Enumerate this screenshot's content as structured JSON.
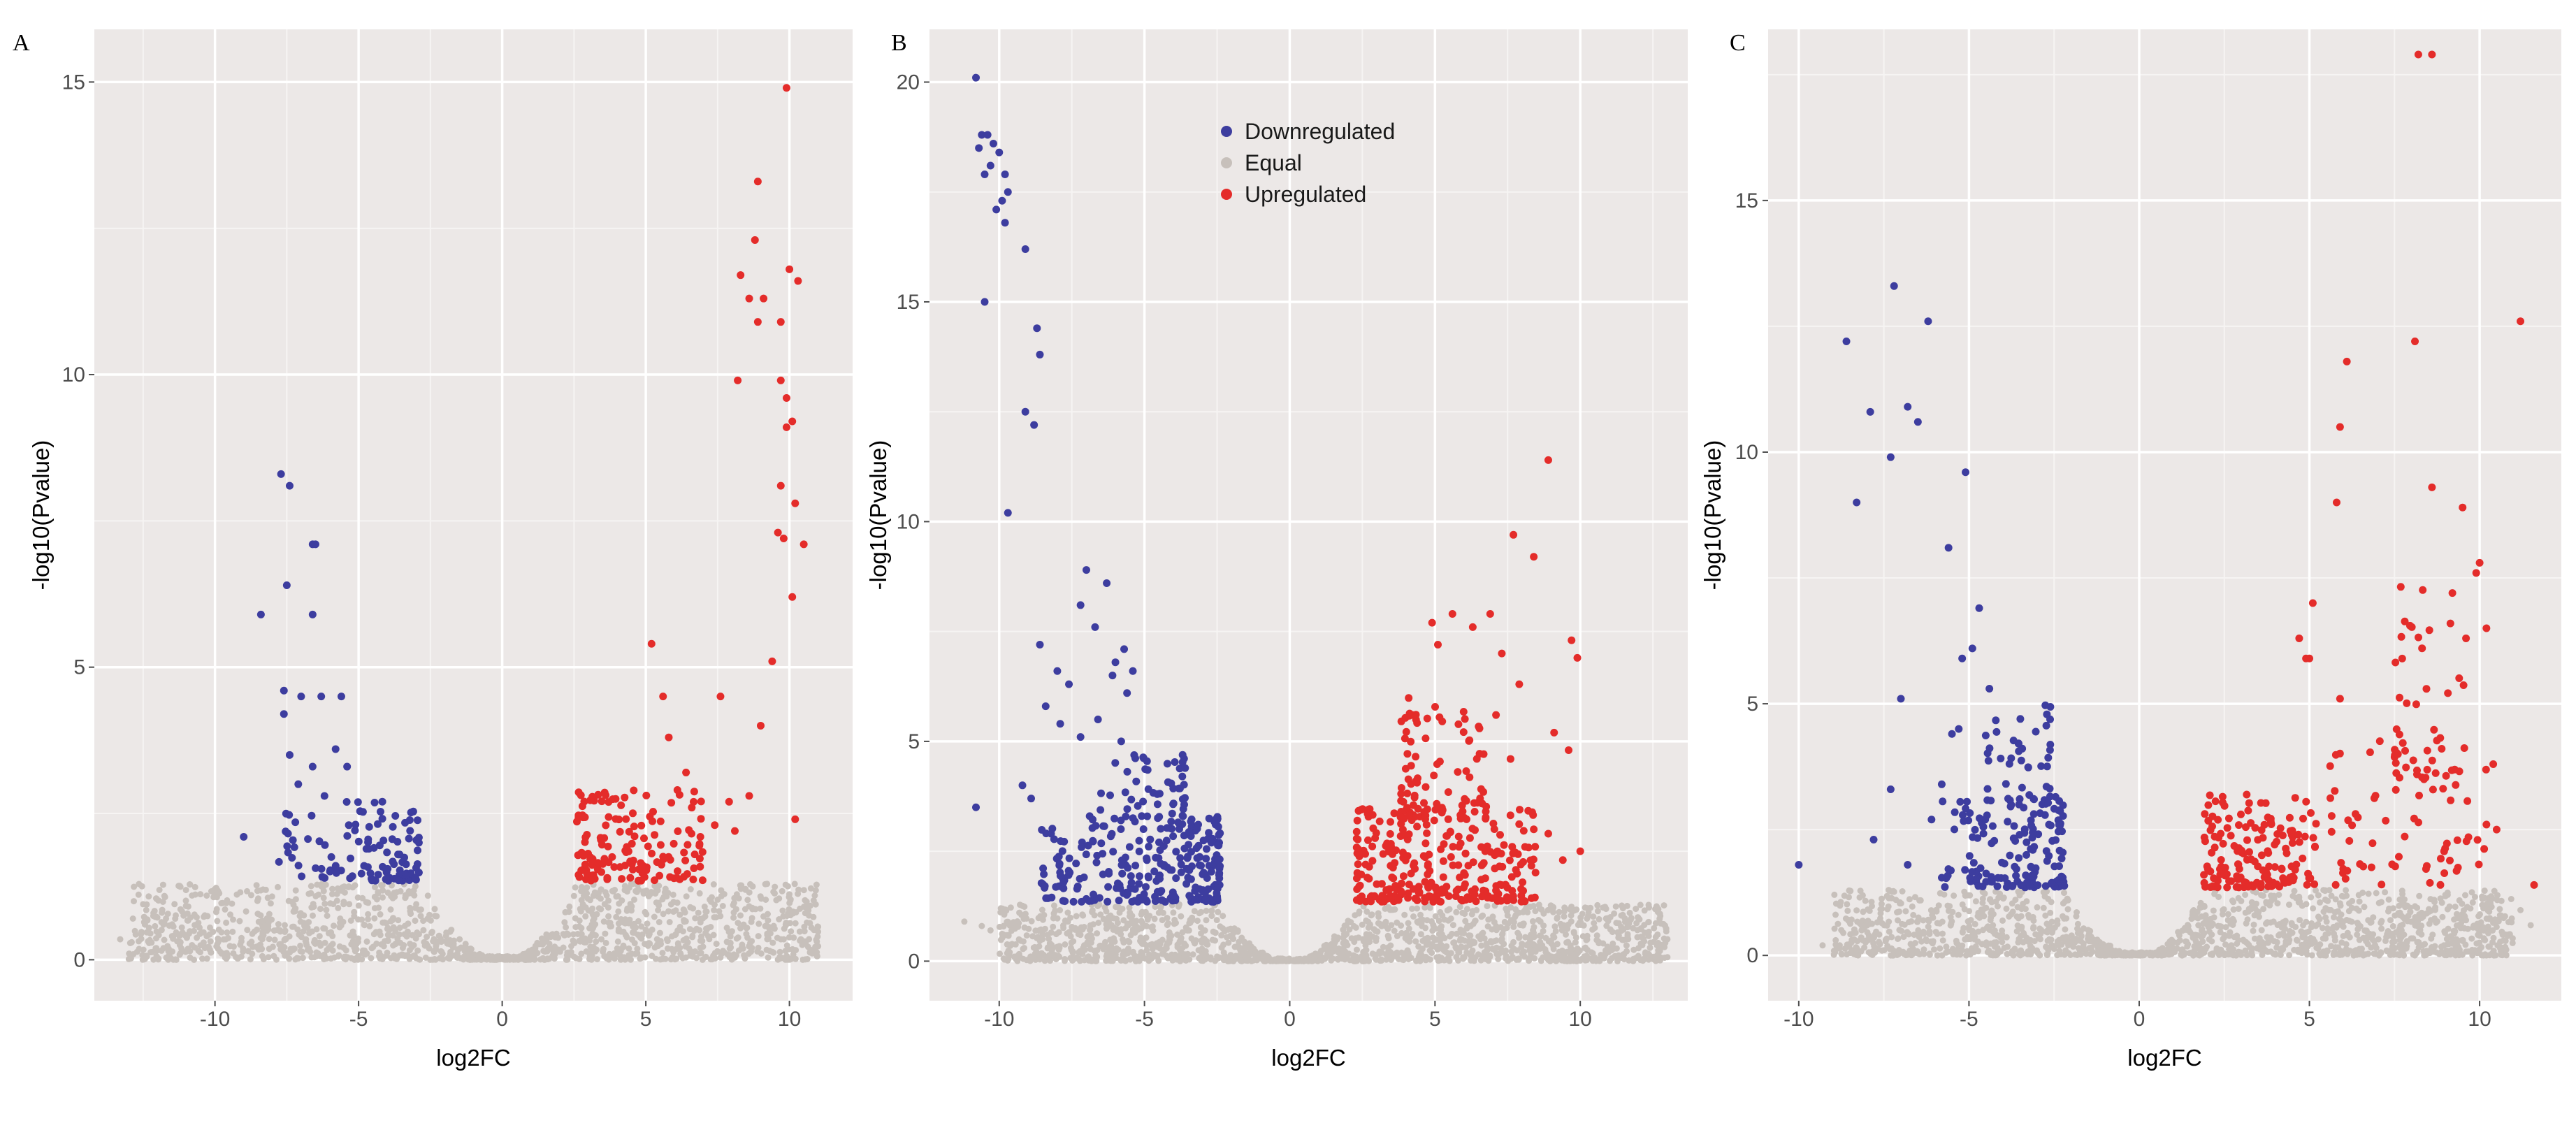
{
  "chart_data": [
    {
      "panel": "A",
      "type": "scatter",
      "title": "",
      "xlabel": "log2FC",
      "ylabel": "-log10(Pvalue)",
      "xlim": [
        -14.2,
        12.2
      ],
      "ylim": [
        -0.7,
        15.9
      ],
      "xticks": [
        -10,
        -5,
        0,
        5,
        10
      ],
      "yticks": [
        0,
        5,
        10,
        15
      ],
      "xtick_labels": [
        "-10",
        "-5",
        "0",
        "5",
        "10"
      ],
      "ytick_labels": [
        "0",
        "5",
        "10",
        "15"
      ],
      "grid": true,
      "colors": {
        "down": "#3d3d9f",
        "equal": "#c7c0bb",
        "up": "#e42c2a"
      },
      "noise": {
        "threshold": 1.3,
        "down_boundary": -2.8,
        "up_boundary": 2.6,
        "xmin": -13,
        "xmax": 11,
        "seed": 11
      },
      "clusters": [
        {
          "side": "down",
          "xmin": -7.8,
          "xmax": -2.9,
          "ymin": 1.35,
          "ymax": 2.8,
          "n": 110,
          "seed": 21
        },
        {
          "side": "up",
          "xmin": 2.6,
          "xmax": 7.0,
          "ymin": 1.35,
          "ymax": 2.9,
          "n": 150,
          "seed": 31
        }
      ],
      "series": [
        {
          "name": "Downregulated",
          "points": [
            [
              -7.7,
              8.3
            ],
            [
              -7.4,
              8.1
            ],
            [
              -6.6,
              7.1
            ],
            [
              -6.5,
              7.1
            ],
            [
              -7.5,
              6.4
            ],
            [
              -8.4,
              5.9
            ],
            [
              -6.6,
              5.9
            ],
            [
              -7.6,
              4.6
            ],
            [
              -7.6,
              4.2
            ],
            [
              -7.0,
              4.5
            ],
            [
              -6.3,
              4.5
            ],
            [
              -5.6,
              4.5
            ],
            [
              -9.0,
              2.1
            ],
            [
              -7.4,
              3.5
            ],
            [
              -6.6,
              3.3
            ],
            [
              -7.1,
              3.0
            ],
            [
              -5.8,
              3.6
            ],
            [
              -5.4,
              3.3
            ]
          ]
        },
        {
          "name": "Equal",
          "points": [
            [
              -13.3,
              0.35
            ],
            [
              -12.9,
              0.3
            ],
            [
              -11.2,
              0.3
            ],
            [
              -10.8,
              0.25
            ],
            [
              9.8,
              0.35
            ],
            [
              10.4,
              0.35
            ],
            [
              10.9,
              0.22
            ]
          ]
        },
        {
          "name": "Upregulated",
          "points": [
            [
              9.9,
              14.9
            ],
            [
              8.9,
              13.3
            ],
            [
              8.8,
              12.3
            ],
            [
              8.3,
              11.7
            ],
            [
              8.6,
              11.3
            ],
            [
              9.1,
              11.3
            ],
            [
              10.0,
              11.8
            ],
            [
              10.3,
              11.6
            ],
            [
              8.9,
              10.9
            ],
            [
              9.7,
              10.9
            ],
            [
              8.2,
              9.9
            ],
            [
              9.7,
              9.9
            ],
            [
              9.9,
              9.6
            ],
            [
              10.1,
              9.2
            ],
            [
              9.9,
              9.1
            ],
            [
              9.7,
              8.1
            ],
            [
              10.2,
              7.8
            ],
            [
              9.6,
              7.3
            ],
            [
              9.8,
              7.2
            ],
            [
              10.5,
              7.1
            ],
            [
              10.1,
              6.2
            ],
            [
              9.4,
              5.1
            ],
            [
              5.2,
              5.4
            ],
            [
              7.6,
              4.5
            ],
            [
              9.0,
              4.0
            ],
            [
              8.6,
              2.8
            ],
            [
              10.2,
              2.4
            ],
            [
              6.9,
              2.1
            ],
            [
              7.4,
              2.3
            ],
            [
              8.1,
              2.2
            ],
            [
              7.9,
              2.7
            ],
            [
              6.4,
              3.2
            ],
            [
              6.1,
              2.9
            ],
            [
              5.8,
              3.8
            ],
            [
              6.6,
              2.6
            ],
            [
              5.6,
              4.5
            ]
          ]
        }
      ]
    },
    {
      "panel": "B",
      "type": "scatter",
      "title": "",
      "xlabel": "log2FC",
      "ylabel": "-log10(Pvalue)",
      "xlim": [
        -12.4,
        13.7
      ],
      "ylim": [
        -0.9,
        21.2
      ],
      "xticks": [
        -10,
        -5,
        0,
        5,
        10
      ],
      "yticks": [
        0,
        5,
        10,
        15,
        20
      ],
      "xtick_labels": [
        "-10",
        "-5",
        "0",
        "5",
        "10"
      ],
      "ytick_labels": [
        "0",
        "5",
        "10",
        "15",
        "20"
      ],
      "grid": true,
      "legend": {
        "position": "top-center",
        "entries": [
          "Downregulated",
          "Equal",
          "Upregulated"
        ]
      },
      "colors": {
        "down": "#3d3d9f",
        "equal": "#c7c0bb",
        "up": "#e42c2a"
      },
      "noise": {
        "threshold": 1.3,
        "down_boundary": -2.4,
        "up_boundary": 2.3,
        "xmin": -10,
        "xmax": 13,
        "seed": 12
      },
      "clusters": [
        {
          "side": "down",
          "xmin": -8.6,
          "xmax": -2.4,
          "ymin": 1.35,
          "ymax": 3.3,
          "n": 260,
          "seed": 22
        },
        {
          "side": "down",
          "xmin": -6.8,
          "xmax": -3.6,
          "ymin": 3.0,
          "ymax": 4.8,
          "n": 60,
          "seed": 23
        },
        {
          "side": "up",
          "xmin": 2.3,
          "xmax": 8.5,
          "ymin": 1.35,
          "ymax": 3.5,
          "n": 280,
          "seed": 32
        },
        {
          "side": "up",
          "xmin": 3.8,
          "xmax": 7.0,
          "ymin": 3.2,
          "ymax": 6.0,
          "n": 90,
          "seed": 33
        }
      ],
      "series": [
        {
          "name": "Downregulated",
          "points": [
            [
              -10.8,
              20.1
            ],
            [
              -10.6,
              18.8
            ],
            [
              -10.4,
              18.8
            ],
            [
              -10.2,
              18.6
            ],
            [
              -10.7,
              18.5
            ],
            [
              -10.0,
              18.4
            ],
            [
              -10.3,
              18.1
            ],
            [
              -9.8,
              17.9
            ],
            [
              -10.5,
              17.9
            ],
            [
              -9.7,
              17.5
            ],
            [
              -9.9,
              17.3
            ],
            [
              -10.1,
              17.1
            ],
            [
              -9.8,
              16.8
            ],
            [
              -9.1,
              16.2
            ],
            [
              -10.5,
              15.0
            ],
            [
              -8.7,
              14.4
            ],
            [
              -8.6,
              13.8
            ],
            [
              -9.1,
              12.5
            ],
            [
              -8.8,
              12.2
            ],
            [
              -9.7,
              10.2
            ],
            [
              -7.0,
              8.9
            ],
            [
              -6.3,
              8.6
            ],
            [
              -7.2,
              8.1
            ],
            [
              -6.7,
              7.6
            ],
            [
              -8.6,
              7.2
            ],
            [
              -5.7,
              7.1
            ],
            [
              -6.0,
              6.8
            ],
            [
              -8.0,
              6.6
            ],
            [
              -5.4,
              6.6
            ],
            [
              -6.1,
              6.5
            ],
            [
              -7.6,
              6.3
            ],
            [
              -5.6,
              6.1
            ],
            [
              -10.8,
              3.5
            ],
            [
              -8.4,
              5.8
            ],
            [
              -7.9,
              5.4
            ],
            [
              -7.2,
              5.1
            ],
            [
              -6.6,
              5.5
            ],
            [
              -5.8,
              5.0
            ],
            [
              -9.2,
              4.0
            ],
            [
              -8.9,
              3.7
            ]
          ]
        },
        {
          "name": "Equal",
          "points": [
            [
              -11.2,
              0.9
            ],
            [
              -10.6,
              0.8
            ],
            [
              -10.3,
              0.7
            ],
            [
              12.6,
              0.55
            ],
            [
              13.0,
              0.5
            ],
            [
              12.2,
              0.45
            ],
            [
              11.6,
              0.5
            ]
          ]
        },
        {
          "name": "Upregulated",
          "points": [
            [
              8.9,
              11.4
            ],
            [
              7.7,
              9.7
            ],
            [
              8.4,
              9.2
            ],
            [
              5.6,
              7.9
            ],
            [
              6.9,
              7.9
            ],
            [
              6.3,
              7.6
            ],
            [
              4.9,
              7.7
            ],
            [
              9.7,
              7.3
            ],
            [
              9.9,
              6.9
            ],
            [
              7.3,
              7.0
            ],
            [
              5.1,
              7.2
            ],
            [
              7.9,
              6.3
            ],
            [
              9.1,
              5.2
            ],
            [
              9.6,
              4.8
            ],
            [
              10.0,
              2.5
            ],
            [
              8.9,
              2.9
            ],
            [
              9.4,
              2.3
            ],
            [
              8.4,
              3.0
            ],
            [
              8.1,
              2.6
            ],
            [
              7.6,
              4.6
            ],
            [
              7.1,
              5.6
            ]
          ]
        }
      ]
    },
    {
      "panel": "C",
      "type": "scatter",
      "title": "",
      "xlabel": "log2FC",
      "ylabel": "-log10(Pvalue)",
      "xlim": [
        -10.9,
        12.4
      ],
      "ylim": [
        -0.9,
        18.4
      ],
      "xticks": [
        -10,
        -5,
        0,
        5,
        10
      ],
      "yticks": [
        0,
        5,
        10,
        15
      ],
      "xtick_labels": [
        "-10",
        "-5",
        "0",
        "5",
        "10"
      ],
      "ytick_labels": [
        "0",
        "5",
        "10",
        "15"
      ],
      "grid": true,
      "colors": {
        "down": "#3d3d9f",
        "equal": "#c7c0bb",
        "up": "#e42c2a"
      },
      "noise": {
        "threshold": 1.3,
        "down_boundary": -2.2,
        "up_boundary": 1.9,
        "xmin": -9,
        "xmax": 11,
        "seed": 13
      },
      "clusters": [
        {
          "side": "down",
          "xmin": -5.8,
          "xmax": -2.2,
          "ymin": 1.35,
          "ymax": 3.2,
          "n": 150,
          "seed": 24
        },
        {
          "side": "down",
          "xmin": -4.6,
          "xmax": -2.6,
          "ymin": 3.0,
          "ymax": 5.0,
          "n": 40,
          "seed": 25
        },
        {
          "side": "up",
          "xmin": 1.9,
          "xmax": 5.2,
          "ymin": 1.35,
          "ymax": 3.2,
          "n": 160,
          "seed": 34
        },
        {
          "side": "up",
          "xmin": 5.5,
          "xmax": 10.2,
          "ymin": 1.4,
          "ymax": 4.5,
          "n": 70,
          "seed": 35
        },
        {
          "side": "up",
          "xmin": 7.5,
          "xmax": 10.0,
          "ymin": 3.5,
          "ymax": 7.5,
          "n": 40,
          "seed": 36
        }
      ],
      "series": [
        {
          "name": "Downregulated",
          "points": [
            [
              -7.2,
              13.3
            ],
            [
              -6.2,
              12.6
            ],
            [
              -8.6,
              12.2
            ],
            [
              -6.8,
              10.9
            ],
            [
              -7.9,
              10.8
            ],
            [
              -6.5,
              10.6
            ],
            [
              -7.3,
              9.9
            ],
            [
              -5.1,
              9.6
            ],
            [
              -8.3,
              9.0
            ],
            [
              -5.6,
              8.1
            ],
            [
              -4.7,
              6.9
            ],
            [
              -4.9,
              6.1
            ],
            [
              -5.2,
              5.9
            ],
            [
              -4.4,
              5.3
            ],
            [
              -7.0,
              5.1
            ],
            [
              -5.5,
              4.4
            ],
            [
              -5.3,
              4.5
            ],
            [
              -7.3,
              3.3
            ],
            [
              -10.0,
              1.8
            ],
            [
              -7.8,
              2.3
            ],
            [
              -6.8,
              1.8
            ],
            [
              -5.8,
              3.4
            ],
            [
              -6.1,
              2.7
            ]
          ]
        },
        {
          "name": "Equal",
          "points": [
            [
              -8.3,
              0.1
            ],
            [
              -9.3,
              0.2
            ],
            [
              11.2,
              0.9
            ],
            [
              10.6,
              0.8
            ],
            [
              9.6,
              0.7
            ],
            [
              11.5,
              0.6
            ]
          ]
        },
        {
          "name": "Upregulated",
          "points": [
            [
              8.2,
              17.9
            ],
            [
              8.6,
              17.9
            ],
            [
              11.2,
              12.6
            ],
            [
              8.1,
              12.2
            ],
            [
              6.1,
              11.8
            ],
            [
              5.9,
              10.5
            ],
            [
              8.6,
              9.3
            ],
            [
              5.8,
              9.0
            ],
            [
              9.5,
              8.9
            ],
            [
              10.0,
              7.8
            ],
            [
              9.9,
              7.6
            ],
            [
              9.2,
              7.2
            ],
            [
              9.6,
              6.3
            ],
            [
              10.2,
              6.5
            ],
            [
              5.1,
              7.0
            ],
            [
              4.7,
              6.3
            ],
            [
              4.9,
              5.9
            ],
            [
              5.0,
              5.9
            ],
            [
              5.9,
              5.1
            ],
            [
              10.4,
              3.8
            ],
            [
              10.2,
              2.6
            ],
            [
              10.5,
              2.5
            ],
            [
              11.6,
              1.4
            ],
            [
              7.6,
              4.0
            ]
          ]
        }
      ]
    }
  ]
}
